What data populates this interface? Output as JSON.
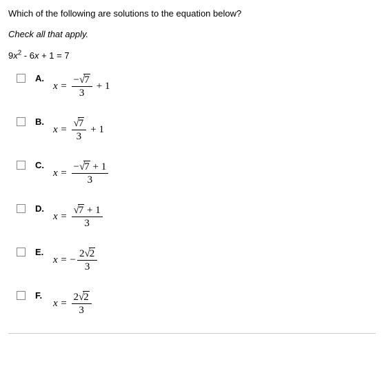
{
  "question": "Which of the following are solutions to the equation below?",
  "instruction": "Check all that apply.",
  "equation_html": "9<i>x</i><sup>2</sup> - 6<i>x</i> + 1 = 7",
  "options": [
    {
      "letter": "A.",
      "lead": "x =",
      "neg": "",
      "num_sign": "−",
      "num_sqrt": "7",
      "num_extra": "",
      "den": "3",
      "trail": "+ 1"
    },
    {
      "letter": "B.",
      "lead": "x =",
      "neg": "",
      "num_sign": "",
      "num_sqrt": "7",
      "num_extra": "",
      "den": "3",
      "trail": "+ 1"
    },
    {
      "letter": "C.",
      "lead": "x =",
      "neg": "",
      "num_sign": "−",
      "num_sqrt": "7",
      "num_extra": " + 1",
      "den": "3",
      "trail": ""
    },
    {
      "letter": "D.",
      "lead": "x =",
      "neg": "",
      "num_sign": "",
      "num_sqrt": "7",
      "num_extra": " + 1",
      "den": "3",
      "trail": ""
    },
    {
      "letter": "E.",
      "lead": "x =",
      "neg": "− ",
      "num_sign": "2",
      "num_sqrt": "2",
      "num_extra": "",
      "den": "3",
      "trail": ""
    },
    {
      "letter": "F.",
      "lead": "x =",
      "neg": "",
      "num_sign": "2",
      "num_sqrt": "2",
      "num_extra": "",
      "den": "3",
      "trail": ""
    }
  ]
}
